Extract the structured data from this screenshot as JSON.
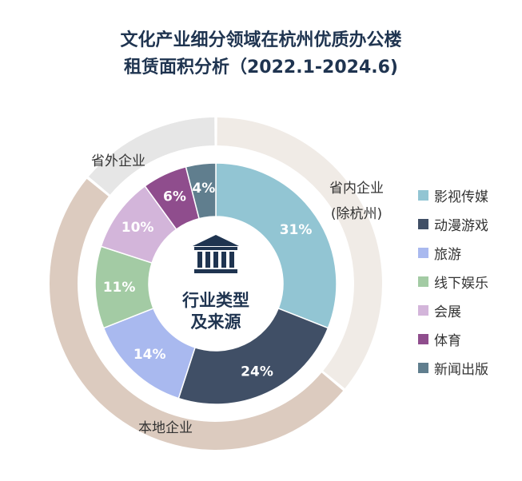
{
  "chart_data": {
    "type": "pie",
    "title_lines": [
      "文化产业细分领域在杭州优质办公楼",
      "租赁面积分析（2022.1-2024.6)"
    ],
    "center_label_lines": [
      "行业类型",
      "及来源"
    ],
    "inner_ring": {
      "categories": [
        "影视传媒",
        "动漫游戏",
        "旅游",
        "线下娱乐",
        "会展",
        "体育",
        "新闻出版"
      ],
      "values": [
        31,
        24,
        14,
        11,
        10,
        6,
        4
      ],
      "labels": [
        "31%",
        "24%",
        "14%",
        "11%",
        "10%",
        "6%",
        "4%"
      ],
      "colors": [
        "#92c5d3",
        "#404f66",
        "#a9b9ef",
        "#a3cba4",
        "#d3b5da",
        "#8f4d8d",
        "#607e8e"
      ]
    },
    "outer_ring": {
      "segments": [
        {
          "label_lines": [
            "省内企业",
            "(除杭州)"
          ],
          "value": 36,
          "color": "#f0ebe6"
        },
        {
          "label_lines": [
            "本地企业"
          ],
          "value": 50,
          "color": "#dccbbf"
        },
        {
          "label_lines": [
            "省外企业"
          ],
          "value": 14,
          "color": "#e6e6e6"
        }
      ]
    },
    "legend_position": "right"
  }
}
